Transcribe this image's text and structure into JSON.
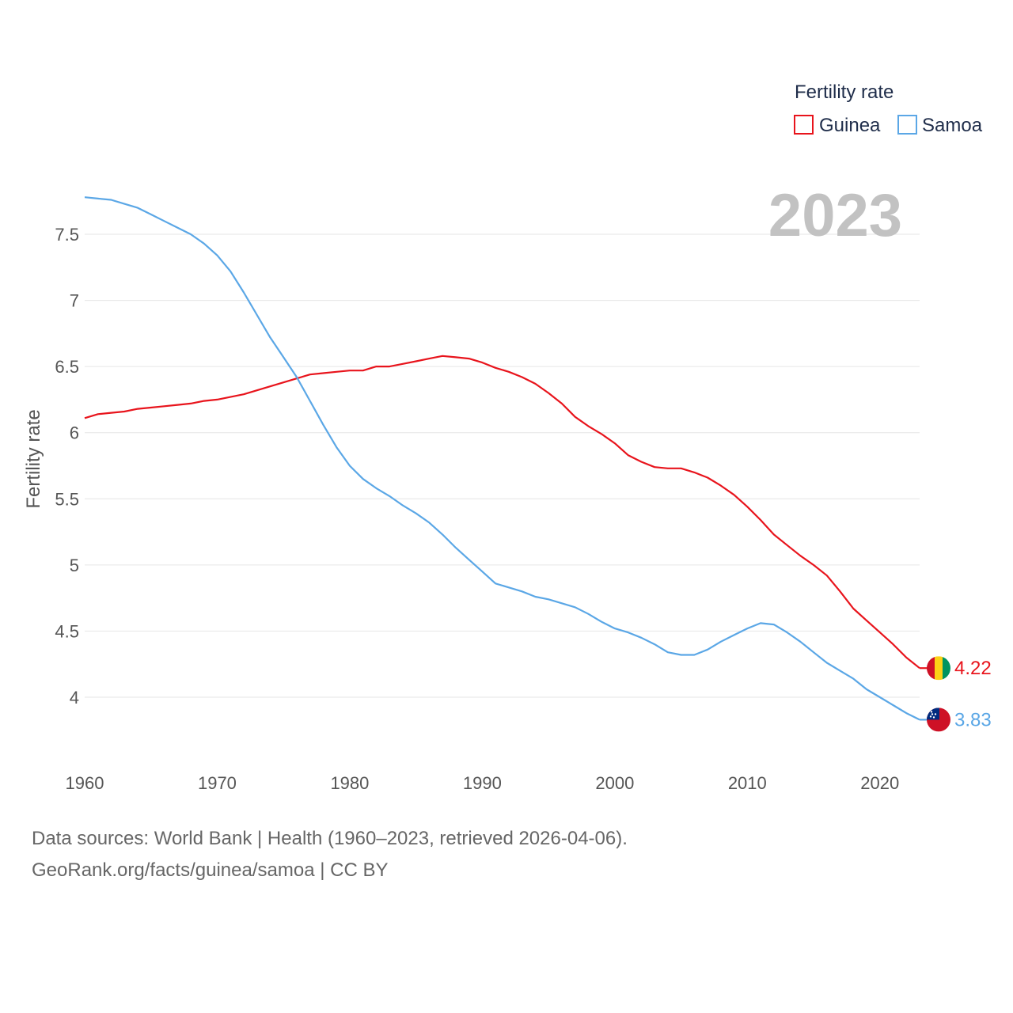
{
  "chart_data": {
    "type": "line",
    "title": "Fertility rate",
    "ylabel": "Fertility rate",
    "xlabel": "",
    "year_label": "2023",
    "xlim": [
      1960,
      2023
    ],
    "ylim": [
      3.6,
      7.8
    ],
    "x_ticks": [
      1960,
      1970,
      1980,
      1990,
      2000,
      2010,
      2020
    ],
    "y_ticks": [
      4,
      4.5,
      5,
      5.5,
      6,
      6.5,
      7,
      7.5
    ],
    "y_tick_labels": [
      "4",
      "4.5",
      "5",
      "5.5",
      "6",
      "6.5",
      "7",
      "7.5"
    ],
    "x": [
      1960,
      1961,
      1962,
      1963,
      1964,
      1965,
      1966,
      1967,
      1968,
      1969,
      1970,
      1971,
      1972,
      1973,
      1974,
      1975,
      1976,
      1977,
      1978,
      1979,
      1980,
      1981,
      1982,
      1983,
      1984,
      1985,
      1986,
      1987,
      1988,
      1989,
      1990,
      1991,
      1992,
      1993,
      1994,
      1995,
      1996,
      1997,
      1998,
      1999,
      2000,
      2001,
      2002,
      2003,
      2004,
      2005,
      2006,
      2007,
      2008,
      2009,
      2010,
      2011,
      2012,
      2013,
      2014,
      2015,
      2016,
      2017,
      2018,
      2019,
      2020,
      2021,
      2022,
      2023
    ],
    "series": [
      {
        "name": "Guinea",
        "color": "#e8141c",
        "end_label": "4.22",
        "values": [
          6.11,
          6.14,
          6.15,
          6.16,
          6.18,
          6.19,
          6.2,
          6.21,
          6.22,
          6.24,
          6.25,
          6.27,
          6.29,
          6.32,
          6.35,
          6.38,
          6.41,
          6.44,
          6.45,
          6.46,
          6.47,
          6.47,
          6.5,
          6.5,
          6.52,
          6.54,
          6.56,
          6.58,
          6.57,
          6.56,
          6.53,
          6.49,
          6.46,
          6.42,
          6.37,
          6.3,
          6.22,
          6.12,
          6.05,
          5.99,
          5.92,
          5.83,
          5.78,
          5.74,
          5.73,
          5.73,
          5.7,
          5.66,
          5.6,
          5.53,
          5.44,
          5.34,
          5.23,
          5.15,
          5.07,
          5.0,
          4.92,
          4.8,
          4.67,
          4.58,
          4.49,
          4.4,
          4.3,
          4.22
        ]
      },
      {
        "name": "Samoa",
        "color": "#5ba7e6",
        "end_label": "3.83",
        "values": [
          7.78,
          7.77,
          7.76,
          7.73,
          7.7,
          7.65,
          7.6,
          7.55,
          7.5,
          7.43,
          7.34,
          7.22,
          7.06,
          6.89,
          6.72,
          6.57,
          6.42,
          6.24,
          6.06,
          5.89,
          5.75,
          5.65,
          5.58,
          5.52,
          5.45,
          5.39,
          5.32,
          5.23,
          5.13,
          5.04,
          4.95,
          4.86,
          4.83,
          4.8,
          4.76,
          4.74,
          4.71,
          4.68,
          4.63,
          4.57,
          4.52,
          4.49,
          4.45,
          4.4,
          4.34,
          4.32,
          4.32,
          4.36,
          4.42,
          4.47,
          4.52,
          4.56,
          4.55,
          4.49,
          4.42,
          4.34,
          4.26,
          4.2,
          4.14,
          4.06,
          4.0,
          3.94,
          3.88,
          3.83
        ]
      }
    ]
  },
  "source": {
    "line1": "Data sources: World Bank | Health (1960–2023, retrieved 2026-04-06).",
    "line2": "GeoRank.org/facts/guinea/samoa | CC BY"
  }
}
